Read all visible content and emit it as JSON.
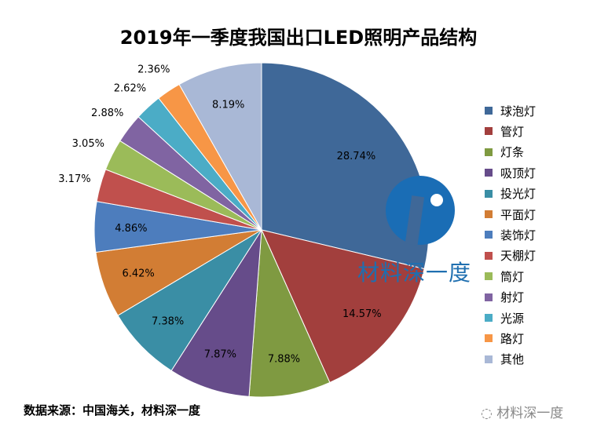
{
  "chart_data": {
    "type": "pie",
    "title": "2019年一季度我国出口LED照明产品结构",
    "start": "12 o'clock, clockwise",
    "legend_position": "right",
    "categories": [
      "球泡灯",
      "管灯",
      "灯条",
      "吸顶灯",
      "投光灯",
      "平面灯",
      "装饰灯",
      "天棚灯",
      "筒灯",
      "射灯",
      "光源",
      "路灯",
      "其他"
    ],
    "values": [
      28.74,
      14.57,
      7.88,
      7.87,
      7.38,
      6.42,
      4.86,
      3.17,
      3.05,
      2.88,
      2.62,
      2.36,
      8.19
    ],
    "labels": [
      "28.74%",
      "14.57%",
      "7.88%",
      "7.87%",
      "7.38%",
      "6.42%",
      "4.86%",
      "3.17%",
      "3.05%",
      "2.88%",
      "2.62%",
      "2.36%",
      "8.19%"
    ],
    "colors": [
      "#3f6898",
      "#a23f3d",
      "#7f9a41",
      "#664c8a",
      "#3a8ea5",
      "#d27d34",
      "#4d7dbd",
      "#c0504d",
      "#9bbb59",
      "#8064a2",
      "#4bacc6",
      "#f79646",
      "#a9b8d6"
    ]
  },
  "source": "数据来源：中国海关，材料深一度",
  "watermark": "材料深一度",
  "logo_text": "材料深一度"
}
